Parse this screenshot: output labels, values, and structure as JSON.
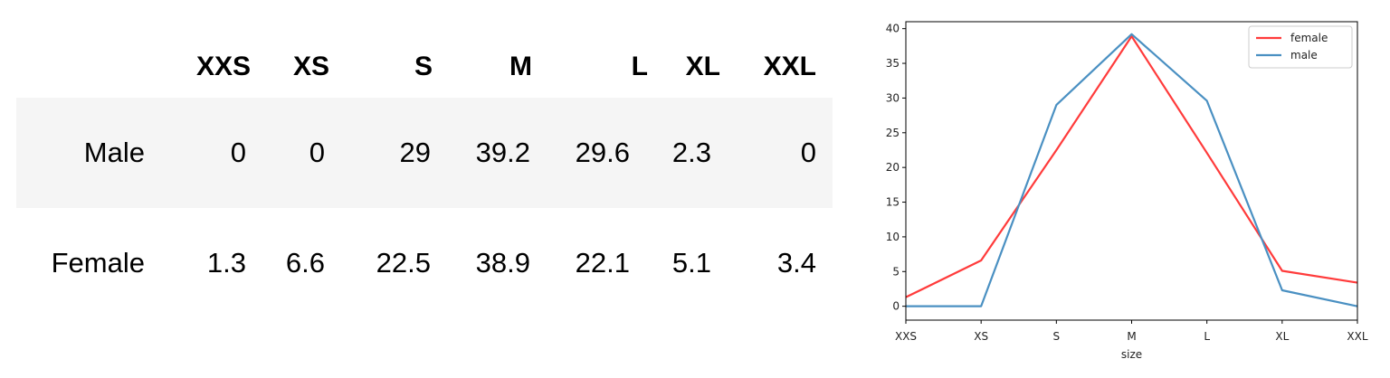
{
  "table": {
    "columns": [
      "XXS",
      "XS",
      "S",
      "M",
      "L",
      "XL",
      "XXL"
    ],
    "rows": [
      {
        "label": "Male",
        "values": [
          "0",
          "0",
          "29",
          "39.2",
          "29.6",
          "2.3",
          "0"
        ]
      },
      {
        "label": "Female",
        "values": [
          "1.3",
          "6.6",
          "22.5",
          "38.9",
          "22.1",
          "5.1",
          "3.4"
        ]
      }
    ]
  },
  "chart_data": {
    "type": "line",
    "categories": [
      "XXS",
      "XS",
      "S",
      "M",
      "L",
      "XL",
      "XXL"
    ],
    "xlabel": "size",
    "ylabel": "",
    "ylim": [
      -2,
      41
    ],
    "yticks": [
      0,
      5,
      10,
      15,
      20,
      25,
      30,
      35,
      40
    ],
    "grid": false,
    "legend": "top-right",
    "series": [
      {
        "name": "female",
        "color": "#ff3b3b",
        "values": [
          1.3,
          6.6,
          22.5,
          38.9,
          22.1,
          5.1,
          3.4
        ]
      },
      {
        "name": "male",
        "color": "#4a90c2",
        "values": [
          0,
          0,
          29,
          39.2,
          29.6,
          2.3,
          0
        ]
      }
    ]
  }
}
